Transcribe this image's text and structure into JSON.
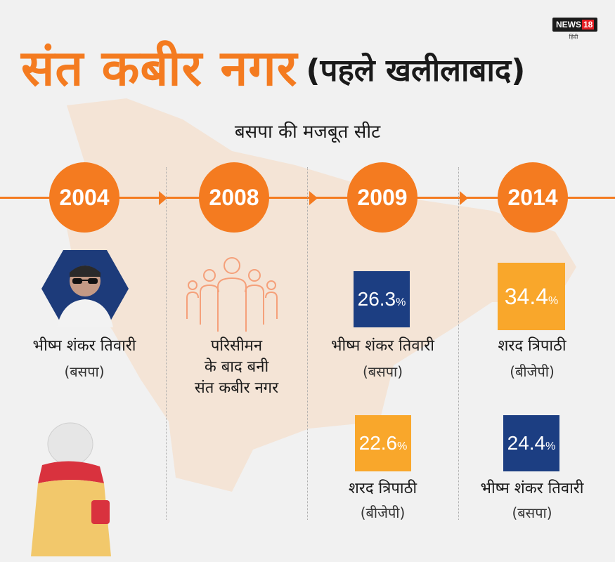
{
  "logo": {
    "brand": "NEWS",
    "number": "18",
    "sub": "हिंदी"
  },
  "title": {
    "main": "संत कबीर नगर",
    "paren": "(पहले खलीलाबाद)"
  },
  "subtitle": "बसपा की मजबूत सीट",
  "colors": {
    "orange": "#f47b20",
    "blue": "#1c3e82",
    "yellow": "#f9a72b",
    "background": "#f1f1f1"
  },
  "columns": [
    {
      "year": "2004",
      "photo": "politician-photo",
      "winner": {
        "name": "भीष्म शंकर तिवारी",
        "party": "(बसपा)"
      }
    },
    {
      "year": "2008",
      "icon": "people-icon",
      "note": [
        "परिसीमन",
        "के बाद बनी",
        "संत कबीर नगर"
      ]
    },
    {
      "year": "2009",
      "winner": {
        "value": "26.3",
        "unit": "%",
        "name": "भीष्म शंकर तिवारी",
        "party": "(बसपा)"
      },
      "runner": {
        "value": "22.6",
        "unit": "%",
        "name": "शरद त्रिपाठी",
        "party": "(बीजेपी)"
      }
    },
    {
      "year": "2014",
      "winner": {
        "value": "34.4",
        "unit": "%",
        "name": "शरद त्रिपाठी",
        "party": "(बीजेपी)"
      },
      "runner": {
        "value": "24.4",
        "unit": "%",
        "name": "भीष्म शंकर तिवारी",
        "party": "(बसपा)"
      }
    }
  ]
}
